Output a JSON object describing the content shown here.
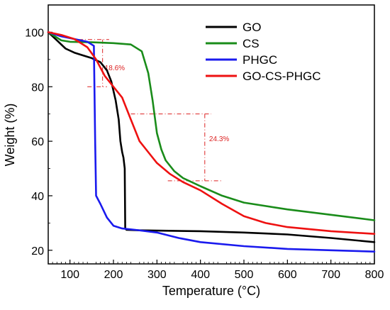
{
  "chart_data": {
    "type": "line",
    "xlabel": "Temperature (°C)",
    "ylabel": "Weight (%)",
    "xlim": [
      50,
      800
    ],
    "ylim": [
      15,
      110
    ],
    "xticks": [
      100,
      200,
      300,
      400,
      500,
      600,
      700,
      800
    ],
    "yticks": [
      20,
      40,
      60,
      80,
      100
    ],
    "legend_position": "top-right",
    "grid": false,
    "series": [
      {
        "name": "GO",
        "color": "#000000",
        "x": [
          50,
          70,
          90,
          110,
          130,
          150,
          170,
          185,
          195,
          205,
          212,
          216,
          220,
          223,
          226,
          227,
          230,
          260,
          300,
          400,
          500,
          600,
          700,
          800
        ],
        "y": [
          100,
          97,
          94,
          92.5,
          91.5,
          90.5,
          89,
          86,
          82,
          75,
          68,
          60,
          56,
          54,
          50,
          28,
          27.5,
          27.3,
          27.2,
          27,
          26.5,
          25.8,
          24.5,
          23
        ]
      },
      {
        "name": "CS",
        "color": "#1a8c1a",
        "x": [
          50,
          80,
          100,
          150,
          200,
          240,
          265,
          280,
          290,
          300,
          310,
          320,
          340,
          360,
          400,
          450,
          500,
          600,
          700,
          800
        ],
        "y": [
          100,
          97,
          96.5,
          96.3,
          96,
          95.5,
          93,
          85,
          75,
          63,
          57,
          53,
          49,
          46.5,
          43.5,
          40,
          37.5,
          35,
          33,
          31
        ]
      },
      {
        "name": "PHGC",
        "color": "#1a1aee",
        "x": [
          50,
          80,
          110,
          140,
          150,
          155,
          158,
          160,
          170,
          185,
          200,
          220,
          250,
          300,
          350,
          400,
          500,
          600,
          700,
          800
        ],
        "y": [
          100,
          98.5,
          97.5,
          96.5,
          95.5,
          95,
          60,
          40,
          37,
          32,
          29,
          28,
          27.5,
          26.5,
          24.5,
          23,
          21.5,
          20.5,
          20,
          19.5
        ]
      },
      {
        "name": "GO-CS-PHGC",
        "color": "#ee1111",
        "x": [
          50,
          80,
          110,
          140,
          160,
          180,
          200,
          220,
          240,
          260,
          280,
          300,
          330,
          360,
          400,
          450,
          500,
          550,
          600,
          700,
          800
        ],
        "y": [
          100,
          99,
          97.5,
          94.5,
          90,
          84,
          80,
          76,
          68,
          60,
          56,
          52,
          48,
          45,
          42,
          37,
          32.5,
          30,
          28.5,
          27,
          26
        ]
      }
    ],
    "annotations": [
      {
        "label": "18.6%",
        "color": "#dd2222",
        "top_line": {
          "x1": 120,
          "x2": 190,
          "y": 97.3
        },
        "bottom_line": {
          "x1": 140,
          "x2": 185,
          "y": 80
        },
        "vertical_x": 175,
        "label_at": {
          "x": 180,
          "y": 86
        }
      },
      {
        "label": "24.3%",
        "color": "#dd2222",
        "top_line": {
          "x1": 240,
          "x2": 425,
          "y": 70
        },
        "bottom_line": {
          "x1": 325,
          "x2": 450,
          "y": 45.5
        },
        "vertical_x": 410,
        "label_at": {
          "x": 420,
          "y": 60
        }
      }
    ]
  }
}
